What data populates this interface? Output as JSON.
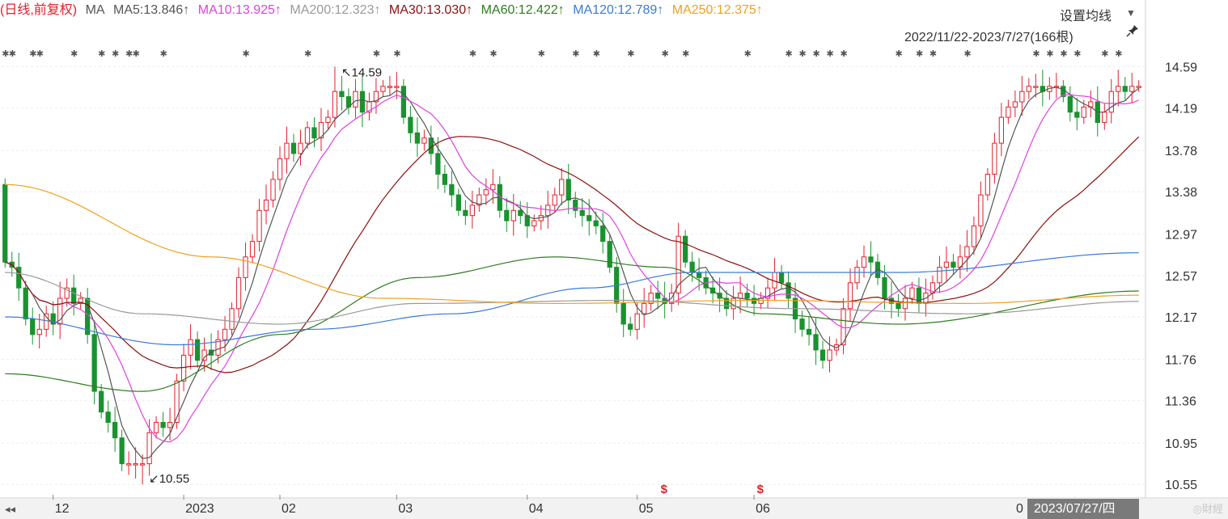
{
  "legend": {
    "period": "(日线,前复权)",
    "ma_label": "MA",
    "items": [
      {
        "key": "ma5",
        "text": "MA5:13.846↑",
        "color": "#555555"
      },
      {
        "key": "ma10",
        "text": "MA10:13.925↑",
        "color": "#e040e0"
      },
      {
        "key": "ma200",
        "text": "MA200:12.323↑",
        "color": "#9a9a9a"
      },
      {
        "key": "ma30",
        "text": "MA30:13.030↑",
        "color": "#8b1010"
      },
      {
        "key": "ma60",
        "text": "MA60:12.422↑",
        "color": "#2e7d1e"
      },
      {
        "key": "ma120",
        "text": "MA120:12.789↑",
        "color": "#3a7bd5"
      },
      {
        "key": "ma250",
        "text": "MA250:12.375↑",
        "color": "#f0a020"
      }
    ]
  },
  "toolbar": {
    "settings_label": "设置均线",
    "date_range": "2022/11/22-2023/7/27(166根)"
  },
  "footer": {
    "nav_left": "◂◂",
    "cursor_date": "2023/07/27/四",
    "cursor_partial": "0",
    "watermark": "◎財經"
  },
  "chart_data": {
    "type": "candlestick",
    "ylim": [
      10.45,
      14.75
    ],
    "y_ticks": [
      14.59,
      14.19,
      13.78,
      13.38,
      12.97,
      12.57,
      12.17,
      11.76,
      11.36,
      10.95,
      10.55
    ],
    "x_ticks": [
      {
        "label": "12",
        "index": 7
      },
      {
        "label": "2023",
        "index": 26
      },
      {
        "label": "02",
        "index": 40
      },
      {
        "label": "03",
        "index": 57
      },
      {
        "label": "04",
        "index": 76
      },
      {
        "label": "05",
        "index": 92
      },
      {
        "label": "06",
        "index": 109
      }
    ],
    "annotations": [
      {
        "text": "14.59",
        "index": 48,
        "value": 14.59,
        "dir": "up"
      },
      {
        "text": "10.55",
        "index": 20,
        "value": 10.55,
        "dir": "down"
      }
    ],
    "event_markers": [
      {
        "index": 96,
        "text": "$"
      },
      {
        "index": 110,
        "text": "$"
      }
    ],
    "colors": {
      "up": "#e0202a",
      "down": "#19932f"
    },
    "start_close": 13.45,
    "candles": [
      -0.75,
      -0.05,
      -0.2,
      -0.3,
      -0.15,
      0.05,
      0.15,
      -0.1,
      0.25,
      0.1,
      -0.15,
      0.05,
      -0.35,
      -0.55,
      -0.2,
      -0.1,
      -0.15,
      -0.25,
      -0.1,
      -0.05,
      -0.15,
      0.3,
      0.1,
      -0.05,
      0.05,
      0.4,
      0.25,
      0.15,
      -0.2,
      0.1,
      -0.05,
      0.15,
      0.1,
      0.2,
      0.3,
      0.2,
      0.15,
      0.3,
      0.1,
      0.2,
      0.2,
      0.15,
      -0.1,
      0.1,
      0.15,
      -0.1,
      0.15,
      0.05,
      0.25,
      -0.05,
      -0.1,
      0.15,
      -0.2,
      0.1,
      0.1,
      0.15,
      0.1,
      0.05,
      -0.3,
      -0.15,
      -0.1,
      0.05,
      -0.15,
      -0.2,
      -0.1,
      -0.1,
      -0.15,
      -0.05,
      0.1,
      0.1,
      0.05,
      0.05,
      -0.25,
      -0.1,
      0.1,
      -0.05,
      -0.1,
      0.05,
      0.05,
      0.1,
      0.1,
      0.15,
      -0.2,
      -0.1,
      -0.05,
      -0.05,
      -0.05,
      -0.15,
      -0.25,
      -0.35,
      -0.2,
      -0.05,
      0.15,
      0.1,
      0.1,
      -0.05,
      -0.05,
      0.1,
      0.55,
      -0.25,
      -0.1,
      -0.05,
      -0.1,
      -0.05,
      -0.05,
      -0.1,
      0.1,
      0.05,
      -0.05,
      -0.05,
      0.05,
      0.1,
      0.15,
      -0.1,
      -0.15,
      -0.2,
      -0.1,
      -0.05,
      -0.15,
      -0.1,
      0.1,
      0.05,
      0.35,
      0.25,
      0.15,
      0.1,
      -0.05,
      -0.15,
      -0.2,
      -0.05,
      -0.05,
      0.1,
      0.1,
      -0.15,
      0.1,
      0.1,
      0.15,
      0.05,
      -0.05,
      0.1,
      0.1,
      0.2,
      0.3,
      0.2,
      0.3,
      0.25,
      0.1,
      0.05,
      0.1,
      0.2,
      0.15,
      -0.05,
      0.05,
      0.05,
      -0.1,
      -0.15,
      -0.05,
      0.1,
      0.05,
      -0.2,
      0.1,
      0.2,
      0.1,
      -0.05,
      0.1,
      0.15
    ],
    "ma_lines": [
      {
        "name": "MA5",
        "color": "#555555",
        "period": 5
      },
      {
        "name": "MA10",
        "color": "#e040e0",
        "period": 10
      },
      {
        "name": "MA30",
        "color": "#8b1010",
        "period": 30
      },
      {
        "name": "MA60",
        "color": "#2e7d1e",
        "points": [
          [
            0,
            11.62
          ],
          [
            20,
            11.45
          ],
          [
            40,
            12.0
          ],
          [
            60,
            12.55
          ],
          [
            80,
            12.75
          ],
          [
            96,
            12.65
          ],
          [
            110,
            12.2
          ],
          [
            130,
            12.1
          ],
          [
            165,
            12.42
          ]
        ]
      },
      {
        "name": "MA120",
        "color": "#3a7bd5",
        "points": [
          [
            0,
            12.17
          ],
          [
            25,
            11.9
          ],
          [
            45,
            12.05
          ],
          [
            65,
            12.2
          ],
          [
            85,
            12.45
          ],
          [
            100,
            12.6
          ],
          [
            130,
            12.6
          ],
          [
            165,
            12.79
          ]
        ]
      },
      {
        "name": "MA200",
        "color": "#9a9a9a",
        "points": [
          [
            0,
            12.6
          ],
          [
            20,
            12.2
          ],
          [
            40,
            12.1
          ],
          [
            60,
            12.3
          ],
          [
            90,
            12.33
          ],
          [
            115,
            12.25
          ],
          [
            140,
            12.2
          ],
          [
            165,
            12.32
          ]
        ]
      },
      {
        "name": "MA250",
        "color": "#f0a020",
        "points": [
          [
            0,
            13.45
          ],
          [
            30,
            12.75
          ],
          [
            55,
            12.35
          ],
          [
            80,
            12.3
          ],
          [
            110,
            12.33
          ],
          [
            140,
            12.3
          ],
          [
            165,
            12.38
          ]
        ]
      }
    ]
  }
}
